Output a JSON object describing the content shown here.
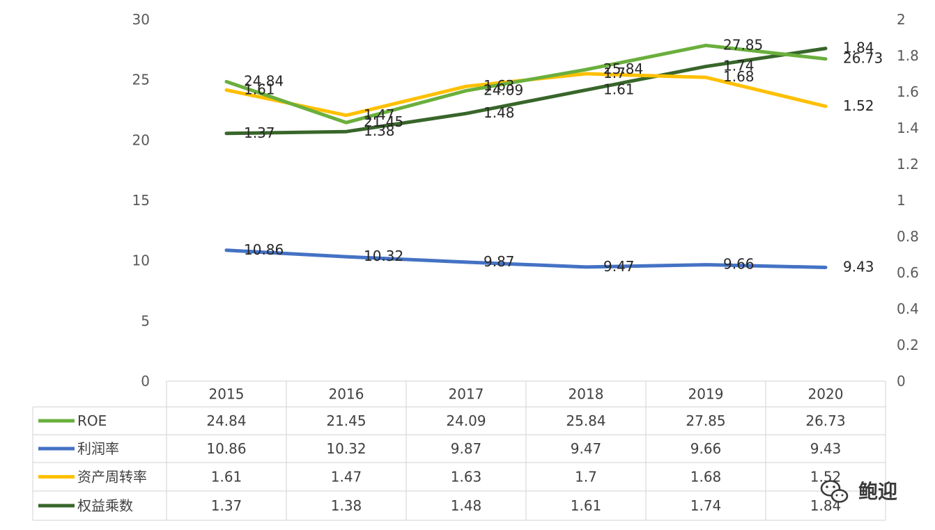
{
  "chart_data": {
    "type": "line",
    "categories": [
      "2015",
      "2016",
      "2017",
      "2018",
      "2019",
      "2020"
    ],
    "primary_axis": {
      "ylim": [
        0,
        30
      ],
      "ticks": [
        "0",
        "5",
        "10",
        "15",
        "20",
        "25",
        "30"
      ]
    },
    "secondary_axis": {
      "ylim": [
        0,
        2
      ],
      "ticks": [
        "0",
        "0.2",
        "0.4",
        "0.6",
        "0.8",
        "1",
        "1.2",
        "1.4",
        "1.6",
        "1.8",
        "2"
      ]
    },
    "series": [
      {
        "name": "ROE",
        "axis": "primary",
        "color": "#6aaf3d",
        "values": [
          24.84,
          21.45,
          24.09,
          25.84,
          27.85,
          26.73
        ],
        "labels": [
          "24.84",
          "21.45",
          "24.09",
          "25.84",
          "27.85",
          "26.73"
        ]
      },
      {
        "name": "利润率",
        "axis": "primary",
        "color": "#4472c4",
        "values": [
          10.86,
          10.32,
          9.87,
          9.47,
          9.66,
          9.43
        ],
        "labels": [
          "10.86",
          "10.32",
          "9.87",
          "9.47",
          "9.66",
          "9.43"
        ]
      },
      {
        "name": "资产周转率",
        "axis": "secondary",
        "color": "#ffc000",
        "values": [
          1.61,
          1.47,
          1.63,
          1.7,
          1.68,
          1.52
        ],
        "labels": [
          "1.61",
          "1.47",
          "1.63",
          "1.7",
          "1.68",
          "1.52"
        ]
      },
      {
        "name": "权益乘数",
        "axis": "secondary",
        "color": "#38662a",
        "values": [
          1.37,
          1.38,
          1.48,
          1.61,
          1.74,
          1.84
        ],
        "labels": [
          "1.37",
          "1.38",
          "1.48",
          "1.61",
          "1.74",
          "1.84"
        ]
      }
    ],
    "legend": "data-table-below",
    "grid": false
  },
  "watermark": {
    "text": "鲍迎",
    "icon": "wechat-icon"
  }
}
